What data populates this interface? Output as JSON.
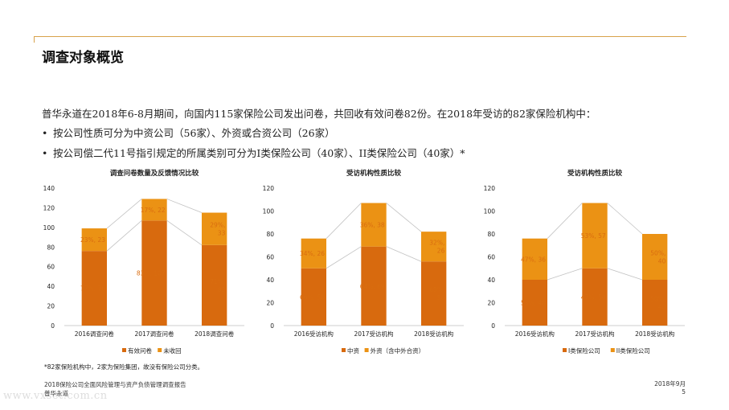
{
  "slide": {
    "title": "调查对象概览",
    "intro": "普华永道在2018年6-8月期间，向国内115家保险公司发出问卷，共回收有效问卷82份。在2018年受访的82家保险机构中：",
    "bullets": [
      "按公司性质可分为中资公司（56家）、外资或合资公司（26家）",
      "按公司偿二代11号指引规定的所属类别可分为I类保险公司（40家）、II类保险公司（40家）*"
    ],
    "bullet_symbol": "•",
    "footnote": "*82家保险机构中，2家为保险集团，故没有保险公司分类。",
    "footer": {
      "report": "2018保险公司全面风险管理与资产负债管理调查报告",
      "company": "普华永道",
      "date": "2018年9月",
      "page": "5"
    },
    "watermark": "www.vxset.com.cn"
  },
  "colors": {
    "dark": "#d86a0e",
    "light": "#eb9214",
    "label_dark": "#ffffff",
    "label_light": "#d96d10",
    "rule": "#d8a24b"
  },
  "chart_data": [
    {
      "type": "bar",
      "stacked": true,
      "title": "调查问卷数量及反馈情况比较",
      "categories": [
        "2016调查问卷",
        "2017调查问卷",
        "2018调查问卷"
      ],
      "series": [
        {
          "name": "有效问卷",
          "values": [
            76,
            107,
            82
          ],
          "labels": [
            "77%, 76",
            "83%, 107",
            "71%,\n82"
          ]
        },
        {
          "name": "未收回",
          "values": [
            23,
            22,
            33
          ],
          "labels": [
            "23%, 23",
            "17%, 22",
            "29%,\n33"
          ]
        }
      ],
      "ylim": [
        0,
        140
      ],
      "yticks": [
        0,
        20,
        40,
        60,
        80,
        100,
        120,
        140
      ]
    },
    {
      "type": "bar",
      "stacked": true,
      "title": "受访机构性质比较",
      "categories": [
        "2016受访机构",
        "2017受访机构",
        "2018受访机构"
      ],
      "series": [
        {
          "name": "中资",
          "values": [
            50,
            69,
            56
          ],
          "labels": [
            "66%, 50",
            "64%, 69",
            "68%,\n56"
          ]
        },
        {
          "name": "外资（含中外合资）",
          "values": [
            26,
            38,
            26
          ],
          "labels": [
            "34%, 26",
            "36%, 38",
            "32%,\n26"
          ]
        }
      ],
      "ylim": [
        0,
        120
      ],
      "yticks": [
        0,
        20,
        40,
        60,
        80,
        100,
        120
      ]
    },
    {
      "type": "bar",
      "stacked": true,
      "title": "受访机构性质比较",
      "categories": [
        "2016受访机构",
        "2017受访机构",
        "2018受访机构"
      ],
      "series": [
        {
          "name": "I类保险公司",
          "values": [
            40,
            50,
            40
          ],
          "labels": [
            "53%, 40",
            "47%, 50",
            "50%,\n40"
          ]
        },
        {
          "name": "II类保险公司",
          "values": [
            36,
            57,
            40
          ],
          "labels": [
            "47%, 36",
            "53%, 57",
            "50%,\n40"
          ]
        }
      ],
      "ylim": [
        0,
        120
      ],
      "yticks": [
        0,
        20,
        40,
        60,
        80,
        100,
        120
      ]
    }
  ]
}
